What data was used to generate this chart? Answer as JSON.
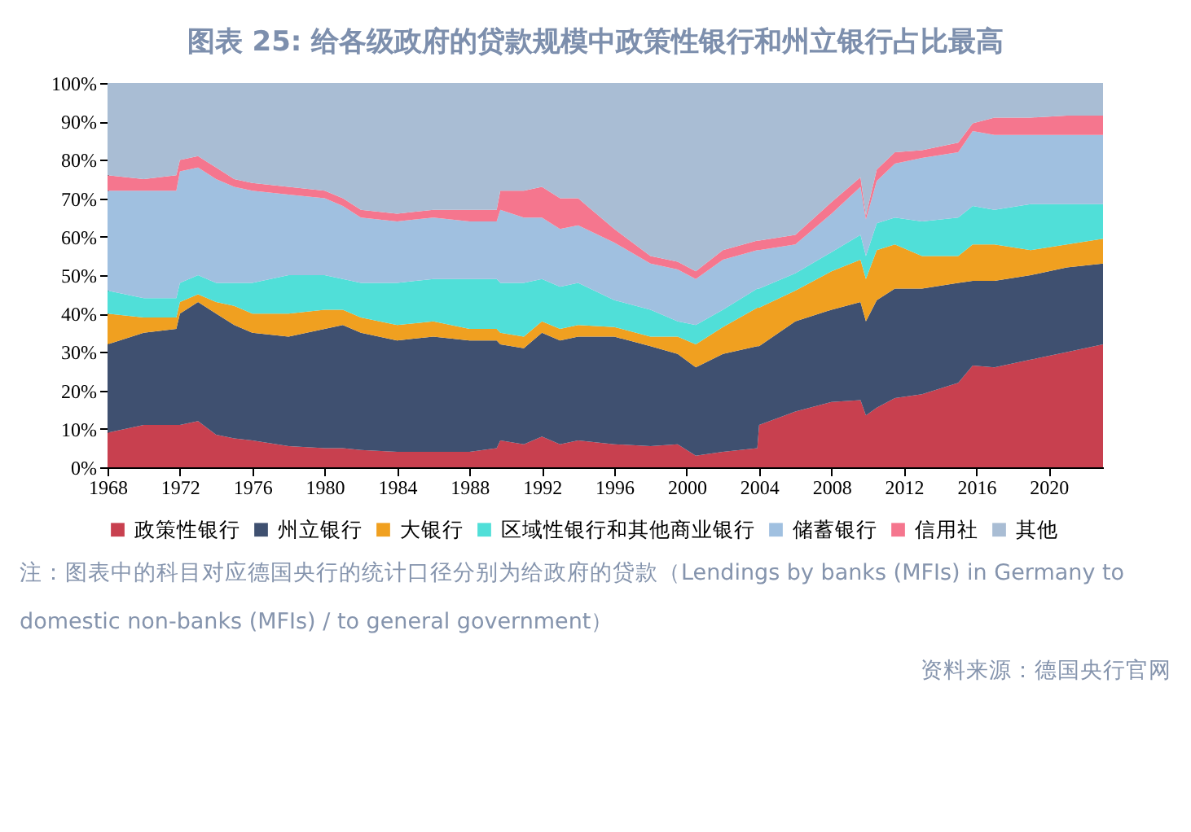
{
  "chart_data": {
    "type": "area",
    "stacked": true,
    "title": "图表 25: 给各级政府的贷款规模中政策性银行和州立银行占比最高",
    "x": [
      1968,
      1970,
      1971.8,
      1972,
      1973,
      1974,
      1975,
      1976,
      1978,
      1980,
      1981,
      1982,
      1984,
      1986,
      1988,
      1989.5,
      1989.7,
      1991,
      1992,
      1993,
      1994,
      1996,
      1998,
      1999.5,
      2000.5,
      2002,
      2003.9,
      2004,
      2006,
      2008,
      2009.6,
      2009.9,
      2010.5,
      2011.5,
      2013,
      2015,
      2015.8,
      2017,
      2019,
      2021,
      2023
    ],
    "series": [
      {
        "name": "政策性银行",
        "color": "#c8404f",
        "values": [
          9,
          11,
          11,
          11,
          12,
          8.5,
          7.5,
          7,
          5.5,
          5,
          5,
          4.5,
          4,
          4,
          4,
          5,
          7,
          6,
          8,
          6,
          7,
          6,
          5.5,
          6,
          3,
          4,
          5,
          11,
          14.5,
          17,
          17.5,
          13.5,
          15.5,
          18,
          19,
          22,
          26.5,
          26,
          28,
          30,
          32
        ]
      },
      {
        "name": "州立银行",
        "color": "#3f5070",
        "values": [
          23,
          24,
          25,
          29,
          31,
          31.5,
          29.5,
          28,
          28.5,
          31,
          32,
          30.5,
          29,
          30,
          29,
          28,
          25,
          25,
          27,
          27,
          27,
          28,
          26,
          23.5,
          23,
          25.5,
          26.5,
          20.5,
          23.5,
          24,
          25.5,
          24.5,
          28,
          28.5,
          27.5,
          26,
          22,
          22.5,
          22,
          22,
          21
        ]
      },
      {
        "name": "大银行",
        "color": "#f0a020",
        "values": [
          8,
          4,
          3,
          3,
          2,
          3,
          5,
          5,
          6,
          5,
          4,
          4,
          4,
          4,
          3,
          3,
          3,
          3,
          3,
          3,
          3,
          2.5,
          2.5,
          4.5,
          6,
          7,
          10,
          10,
          8,
          10,
          11,
          11,
          13,
          11.5,
          8.5,
          7,
          9.5,
          9.5,
          6.5,
          6,
          6.5
        ]
      },
      {
        "name": "区域性银行和其他商业银行",
        "color": "#50dfd8",
        "values": [
          6,
          5,
          5,
          5,
          5,
          5,
          6,
          8,
          10,
          9,
          8,
          9,
          11,
          11,
          13,
          13,
          13,
          14,
          11,
          11,
          11,
          7,
          7,
          4,
          5,
          4.5,
          5,
          5,
          4.5,
          5,
          6.5,
          6,
          7,
          7,
          9,
          10,
          10,
          9,
          12,
          10.5,
          9
        ]
      },
      {
        "name": "储蓄银行",
        "color": "#a0c0e0",
        "values": [
          26,
          28,
          28,
          29,
          28,
          27,
          25,
          24,
          21,
          20,
          19,
          17,
          16,
          16,
          15,
          15,
          19,
          17,
          16,
          15,
          15,
          15,
          12,
          13.5,
          12,
          13,
          10,
          10,
          7.5,
          10,
          12.5,
          9.5,
          11,
          14,
          16.5,
          17,
          19.5,
          19.5,
          18,
          18,
          18
        ]
      },
      {
        "name": "信用社",
        "color": "#f5768e",
        "values": [
          4,
          3,
          4,
          3,
          3,
          3,
          2,
          2,
          2,
          2,
          2,
          2,
          2,
          2,
          3,
          3,
          5,
          7,
          8,
          8,
          7,
          3.5,
          2,
          2,
          2,
          2.5,
          2.5,
          2.5,
          2.5,
          3,
          2.5,
          1,
          3,
          3,
          2,
          2.5,
          2,
          4.5,
          4.5,
          5,
          5
        ]
      },
      {
        "name": "其他",
        "color": "#a9bdd4",
        "values": [
          24,
          25,
          24,
          20,
          19,
          22,
          25,
          26,
          27,
          28,
          30,
          33,
          34,
          33,
          33,
          33,
          28,
          28,
          27,
          30,
          30,
          38,
          45,
          46.5,
          49,
          43.5,
          41,
          41,
          39.5,
          31,
          24.5,
          34.5,
          22.5,
          18,
          17.5,
          15.5,
          10.5,
          9,
          9,
          8.5,
          8.5
        ]
      }
    ],
    "xlim": [
      1968,
      2023
    ],
    "xticks": [
      1968,
      1972,
      1976,
      1980,
      1984,
      1988,
      1992,
      1996,
      2000,
      2004,
      2008,
      2012,
      2016,
      2020
    ],
    "ylim": [
      0,
      100
    ],
    "yticks": [
      {
        "value": 0,
        "label": "0%"
      },
      {
        "value": 10,
        "label": "10%"
      },
      {
        "value": 20,
        "label": "20%"
      },
      {
        "value": 30,
        "label": "30%"
      },
      {
        "value": 40,
        "label": "40%"
      },
      {
        "value": 50,
        "label": "50%"
      },
      {
        "value": 60,
        "label": "60%"
      },
      {
        "value": 70,
        "label": "70%"
      },
      {
        "value": 80,
        "label": "80%"
      },
      {
        "value": 90,
        "label": "90%"
      },
      {
        "value": 100,
        "label": "100%"
      }
    ],
    "grid": false,
    "legend": "bottom",
    "annotations": [
      "注：图表中的科目对应德国央行的统计口径分别为给政府的贷款（Lendings by banks (MFIs) in Germany to domestic non-banks (MFIs) / to general government）",
      "资料来源：德国央行官网"
    ]
  }
}
